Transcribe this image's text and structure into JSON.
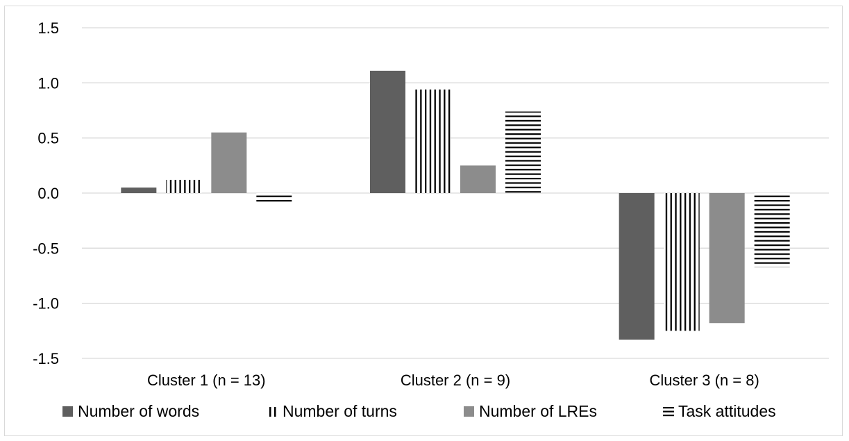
{
  "chart_data": {
    "type": "bar",
    "categories": [
      "Cluster 1 (n = 13)",
      "Cluster 2 (n = 9)",
      "Cluster 3 (n = 8)"
    ],
    "series": [
      {
        "name": "Number of words",
        "values": [
          0.05,
          1.11,
          -1.33
        ],
        "color": "#5f5f5f",
        "pattern": "solid"
      },
      {
        "name": "Number of turns",
        "values": [
          0.12,
          0.94,
          -1.25
        ],
        "color": "#000000",
        "pattern": "vertical-lines"
      },
      {
        "name": "Number of LREs",
        "values": [
          0.55,
          0.25,
          -1.18
        ],
        "color": "#8c8c8c",
        "pattern": "solid"
      },
      {
        "name": "Task attitudes",
        "values": [
          -0.1,
          0.74,
          -0.67
        ],
        "color": "#000000",
        "pattern": "horizontal-lines"
      }
    ],
    "ylim": [
      -1.5,
      1.5
    ],
    "yticks": [
      "1.5",
      "1.0",
      "0.5",
      "0.0",
      "-0.5",
      "-1.0",
      "-1.5"
    ],
    "ytick_values": [
      1.5,
      1.0,
      0.5,
      0.0,
      -0.5,
      -1.0,
      -1.5
    ],
    "grid": true,
    "legend_position": "bottom",
    "title": "",
    "xlabel": "",
    "ylabel": ""
  }
}
